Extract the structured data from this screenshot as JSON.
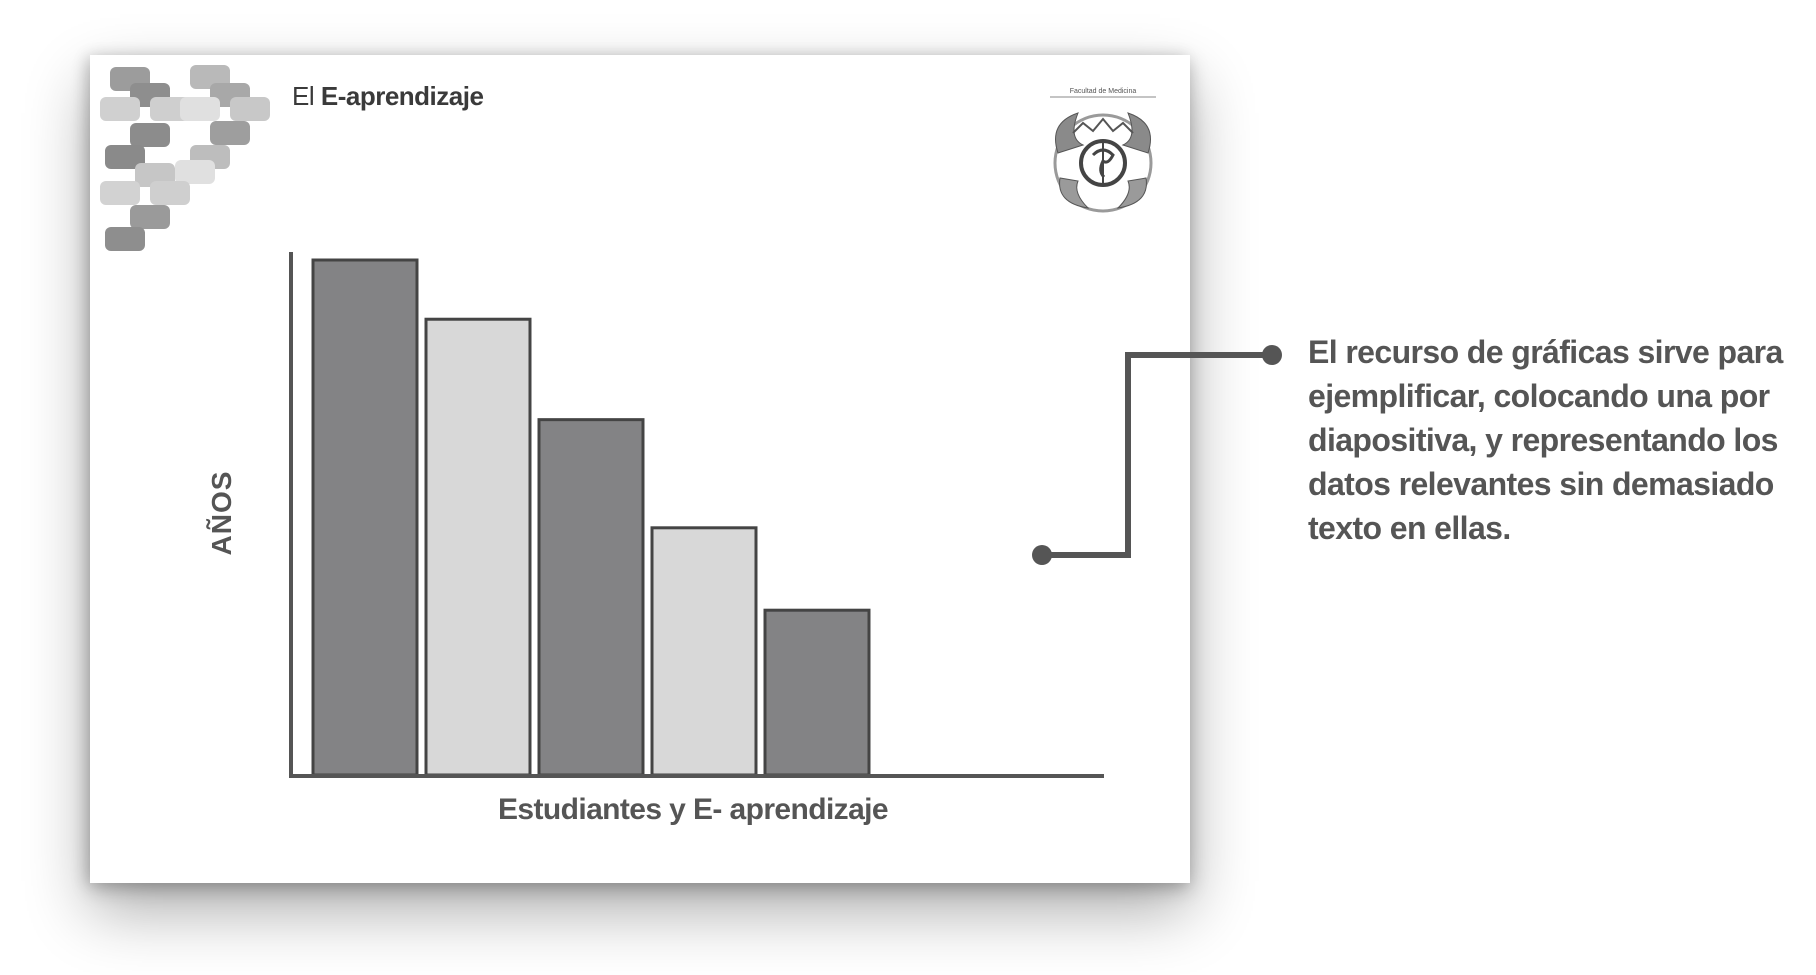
{
  "slide": {
    "title_prefix": "El",
    "title_bold": "E-aprendizaje",
    "logo_caption": "Facultad de Medicina"
  },
  "annotation": "El recurso de gráficas sirve para ejemplificar, colocando una por diapositiva, y representando los datos relevantes sin demasiado texto en ellas.",
  "colors": {
    "dark_bar": "#838385",
    "light_bar": "#d8d8d8",
    "bar_outline": "#444444",
    "axis": "#555555",
    "text": "#555555"
  },
  "chart_data": {
    "type": "bar",
    "categories": [
      "",
      "",
      "",
      "",
      ""
    ],
    "values": [
      100,
      88.5,
      69,
      48,
      32
    ],
    "title": "",
    "xlabel": "Estudiantes y E- aprendizaje",
    "ylabel": "AÑOS",
    "ylim": [
      0,
      112
    ],
    "grid": false,
    "bar_fill": [
      "dark",
      "light",
      "dark",
      "light",
      "dark"
    ]
  }
}
